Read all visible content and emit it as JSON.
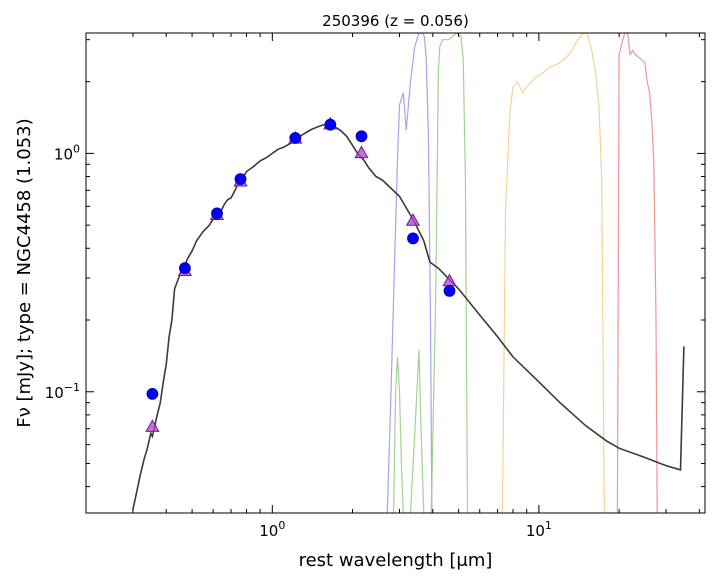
{
  "chart_data": {
    "type": "line",
    "title": "250396 (z = 0.056)",
    "xlabel": "rest wavelength [μm]",
    "ylabel": "Fν [mJy];  type = NGC4458 (1.053)",
    "xscale": "log",
    "yscale": "log",
    "xlim": [
      0.2,
      42
    ],
    "ylim": [
      0.031,
      3.2
    ],
    "x_tick_labels": [
      {
        "value": 1,
        "base": "10",
        "exp": "0"
      },
      {
        "value": 10,
        "base": "10",
        "exp": "1"
      }
    ],
    "y_tick_labels": [
      {
        "value": 0.1,
        "base": "10",
        "exp": "−1"
      },
      {
        "value": 1,
        "base": "10",
        "exp": "0"
      }
    ],
    "grid": false,
    "legend": "none",
    "colors": {
      "sed": "#3a3a3a",
      "observed": "#0000ff",
      "model": "#b040d0",
      "filter_blue": "#9999ee",
      "filter_green": "#99cc88",
      "filter_orange": "#f5cc88",
      "filter_red": "#f08a8a"
    },
    "series": [
      {
        "kind": "sed_template",
        "x": [
          0.3,
          0.31,
          0.32,
          0.33,
          0.34,
          0.35,
          0.355,
          0.37,
          0.38,
          0.39,
          0.4,
          0.41,
          0.42,
          0.43,
          0.45,
          0.47,
          0.48,
          0.5,
          0.52,
          0.55,
          0.58,
          0.6,
          0.62,
          0.64,
          0.66,
          0.68,
          0.7,
          0.72,
          0.75,
          0.78,
          0.8,
          0.85,
          0.9,
          0.95,
          1.0,
          1.05,
          1.1,
          1.2,
          1.3,
          1.4,
          1.5,
          1.6,
          1.65,
          1.7,
          1.8,
          1.9,
          2.0,
          2.1,
          2.2,
          2.3,
          2.45,
          2.6,
          3.0,
          3.4,
          3.7,
          3.9,
          4.2,
          5.0,
          6.0,
          7.0,
          8.0,
          10.0,
          12.0,
          15.0,
          18.0,
          20.0,
          25.0,
          30.0,
          34.0,
          35.0
        ],
        "y": [
          0.032,
          0.038,
          0.045,
          0.052,
          0.058,
          0.067,
          0.065,
          0.08,
          0.09,
          0.11,
          0.13,
          0.17,
          0.2,
          0.27,
          0.31,
          0.34,
          0.36,
          0.39,
          0.43,
          0.47,
          0.5,
          0.53,
          0.56,
          0.57,
          0.61,
          0.64,
          0.65,
          0.69,
          0.76,
          0.8,
          0.84,
          0.88,
          0.93,
          0.96,
          1.0,
          1.04,
          1.06,
          1.12,
          1.2,
          1.26,
          1.3,
          1.33,
          1.34,
          1.3,
          1.25,
          1.18,
          1.08,
          0.99,
          0.94,
          0.87,
          0.8,
          0.77,
          0.66,
          0.52,
          0.43,
          0.35,
          0.33,
          0.27,
          0.21,
          0.17,
          0.14,
          0.11,
          0.09,
          0.072,
          0.062,
          0.058,
          0.053,
          0.049,
          0.047,
          0.155
        ]
      },
      {
        "kind": "observed",
        "marker": "circle",
        "x": [
          0.355,
          0.47,
          0.62,
          0.76,
          1.22,
          1.65,
          2.16,
          3.37,
          4.62
        ],
        "y": [
          0.098,
          0.33,
          0.56,
          0.78,
          1.16,
          1.32,
          1.18,
          0.44,
          0.265
        ]
      },
      {
        "kind": "model",
        "marker": "triangle",
        "x": [
          0.355,
          0.47,
          0.62,
          0.76,
          1.22,
          1.65,
          2.16,
          3.37,
          4.62
        ],
        "y": [
          0.071,
          0.32,
          0.55,
          0.76,
          1.15,
          1.32,
          1.0,
          0.52,
          0.29
        ]
      },
      {
        "kind": "filter_curve",
        "x": [
          2.7,
          2.78,
          2.85,
          2.95,
          3.0,
          3.1,
          3.18,
          3.3,
          3.42,
          3.55,
          3.65,
          3.72,
          3.78,
          3.85,
          3.92,
          3.97
        ],
        "y": [
          0.031,
          0.09,
          0.25,
          0.95,
          1.6,
          1.8,
          1.25,
          2.0,
          2.8,
          3.2,
          3.2,
          3.1,
          2.5,
          1.2,
          0.2,
          0.031
        ]
      },
      {
        "kind": "filter_curve",
        "x": [
          2.85,
          2.9,
          2.95,
          3.0,
          3.05,
          3.1,
          3.3,
          3.45,
          3.55,
          3.6,
          3.7,
          3.8,
          3.95,
          4.1,
          4.2,
          4.25,
          4.35,
          4.6,
          4.9,
          5.1,
          5.2,
          5.3,
          5.4
        ],
        "y": [
          0.031,
          0.1,
          0.14,
          0.1,
          0.05,
          0.031,
          0.031,
          0.08,
          0.15,
          0.08,
          0.031,
          0.031,
          0.031,
          0.25,
          2.2,
          2.8,
          3.0,
          3.0,
          3.2,
          3.1,
          2.5,
          0.8,
          0.031
        ]
      },
      {
        "kind": "filter_curve",
        "x": [
          7.3,
          7.5,
          7.8,
          8.0,
          8.3,
          8.7,
          9.0,
          9.4,
          9.8,
          10.5,
          11.0,
          12.0,
          13.0,
          14.0,
          14.7,
          15.2,
          15.8,
          16.3,
          16.8,
          17.2,
          17.6
        ],
        "y": [
          0.031,
          0.6,
          1.5,
          1.9,
          2.0,
          1.8,
          1.9,
          2.0,
          2.1,
          2.2,
          2.3,
          2.4,
          2.6,
          3.0,
          3.2,
          3.2,
          2.7,
          2.2,
          1.6,
          0.8,
          0.031
        ]
      },
      {
        "kind": "filter_curve",
        "x": [
          19.7,
          20.0,
          20.5,
          21.0,
          21.5,
          22.0,
          22.5,
          23.0,
          24.0,
          25.0,
          25.5,
          26.0,
          26.5,
          27.0,
          27.5,
          27.8
        ],
        "y": [
          0.031,
          2.6,
          2.9,
          3.2,
          3.2,
          2.6,
          2.7,
          2.6,
          2.5,
          2.4,
          2.0,
          1.8,
          1.4,
          0.9,
          0.2,
          0.031
        ]
      }
    ]
  }
}
